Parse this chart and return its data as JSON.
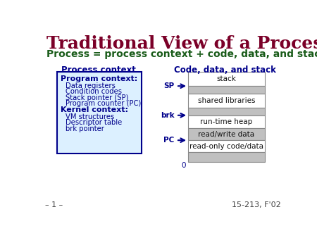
{
  "title": "Traditional View of a Process",
  "subtitle": "Process = process context + code, data, and stack",
  "title_color": "#7B0028",
  "subtitle_color": "#1a5c1a",
  "bg_color": "#FFFFFF",
  "left_label": "Process context",
  "right_label": "Code, data, and stack",
  "box_bg": "#DCF0FF",
  "box_border": "#00008B",
  "program_context_bold": "Program context:",
  "program_context_items": [
    "Data registers",
    "Condition codes",
    "Stack pointer (SP)",
    "Program counter (PC)"
  ],
  "kernel_context_bold": "Kernel context:",
  "kernel_context_items": [
    "VM structures",
    "Descriptor table",
    "brk pointer"
  ],
  "stack_segments": [
    "stack",
    "shared libraries",
    "run-time heap",
    "read/write data",
    "read-only code/data",
    ""
  ],
  "segment_colors": [
    "#FFFFFF",
    "#C0C0C0",
    "#FFFFFF",
    "#C0C0C0",
    "#FFFFFF",
    "#C8C8C8"
  ],
  "zero_label": "0",
  "footer_left": "– 1 –",
  "footer_right": "15-213, F'02",
  "text_color_dark": "#00008B",
  "arrow_color": "#00008B",
  "label_color": "#555555"
}
